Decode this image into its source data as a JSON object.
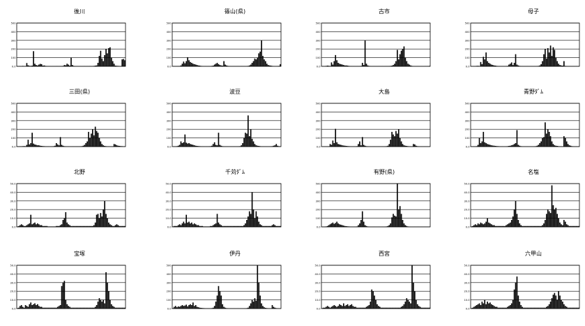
{
  "chart_data": [
    {
      "type": "bar",
      "title": "後川",
      "ylim": [
        0,
        500
      ],
      "yticks": [
        "0.0",
        "100",
        "200",
        "300",
        "400",
        "500"
      ],
      "grid": true,
      "values": [
        2,
        3,
        3,
        2,
        5,
        4,
        3,
        38,
        12,
        6,
        5,
        8,
        175,
        30,
        15,
        10,
        20,
        28,
        25,
        8,
        10,
        5,
        4,
        3,
        3,
        2,
        2,
        2,
        2,
        3,
        3,
        2,
        3,
        2,
        5,
        15,
        12,
        30,
        20,
        8,
        100,
        15,
        5,
        3,
        2,
        2,
        2,
        2,
        2,
        2,
        3,
        2,
        2,
        2,
        3,
        2,
        3,
        5,
        8,
        10,
        40,
        120,
        180,
        90,
        60,
        130,
        200,
        150,
        210,
        220,
        100,
        60,
        30,
        8,
        6,
        5,
        3,
        2,
        80,
        85,
        70
      ]
    },
    {
      "type": "bar",
      "title": "篠山(県)",
      "ylim": [
        0,
        500
      ],
      "yticks": [
        "0.0",
        "100",
        "200",
        "300",
        "400",
        "500"
      ],
      "grid": true,
      "values": [
        1,
        2,
        2,
        3,
        4,
        3,
        10,
        30,
        55,
        35,
        60,
        105,
        70,
        50,
        40,
        30,
        25,
        20,
        15,
        10,
        8,
        5,
        4,
        3,
        3,
        2,
        2,
        2,
        3,
        5,
        8,
        20,
        30,
        40,
        25,
        15,
        10,
        8,
        60,
        20,
        10,
        5,
        3,
        2,
        2,
        2,
        2,
        2,
        2,
        2,
        2,
        3,
        3,
        2,
        2,
        3,
        5,
        10,
        20,
        40,
        60,
        90,
        80,
        100,
        150,
        170,
        300,
        120,
        80,
        60,
        30,
        15,
        10,
        8,
        5,
        3,
        2,
        2,
        4,
        5,
        25
      ]
    },
    {
      "type": "bar",
      "title": "古市",
      "ylim": [
        0,
        500
      ],
      "yticks": [
        "0.0",
        "100",
        "200",
        "300",
        "400",
        "500"
      ],
      "grid": true,
      "values": [
        2,
        3,
        2,
        5,
        8,
        6,
        4,
        45,
        20,
        60,
        130,
        70,
        40,
        30,
        25,
        20,
        15,
        10,
        10,
        8,
        5,
        4,
        3,
        3,
        2,
        2,
        2,
        2,
        3,
        5,
        40,
        15,
        300,
        30,
        10,
        5,
        3,
        2,
        2,
        2,
        2,
        2,
        2,
        2,
        2,
        2,
        2,
        2,
        2,
        3,
        3,
        5,
        8,
        15,
        30,
        60,
        190,
        80,
        140,
        180,
        200,
        230,
        100,
        60,
        30,
        20,
        10,
        5,
        3,
        2,
        2,
        2,
        2,
        2,
        2,
        2,
        2,
        3,
        3,
        4,
        5
      ]
    },
    {
      "type": "bar",
      "title": "母子",
      "ylim": [
        0,
        500
      ],
      "yticks": [
        "0.0",
        "100",
        "200",
        "300",
        "400",
        "500"
      ],
      "grid": true,
      "values": [
        2,
        3,
        2,
        3,
        5,
        6,
        4,
        50,
        25,
        110,
        80,
        160,
        60,
        40,
        30,
        20,
        15,
        10,
        8,
        5,
        4,
        3,
        3,
        2,
        2,
        2,
        3,
        5,
        20,
        30,
        45,
        15,
        40,
        140,
        20,
        10,
        5,
        3,
        2,
        2,
        2,
        2,
        2,
        2,
        2,
        2,
        2,
        2,
        2,
        3,
        5,
        10,
        25,
        60,
        140,
        200,
        90,
        210,
        160,
        240,
        120,
        220,
        190,
        100,
        60,
        30,
        15,
        10,
        8,
        60,
        5,
        3,
        2,
        2,
        2,
        2,
        2,
        2,
        2,
        2,
        2
      ]
    },
    {
      "type": "bar",
      "title": "三田(県)",
      "ylim": [
        0,
        500
      ],
      "yticks": [
        "0.0",
        "100",
        "200",
        "300",
        "400",
        "500"
      ],
      "grid": true,
      "values": [
        2,
        3,
        3,
        4,
        5,
        6,
        5,
        20,
        80,
        25,
        40,
        160,
        35,
        25,
        20,
        15,
        15,
        10,
        8,
        6,
        5,
        4,
        3,
        3,
        2,
        2,
        3,
        5,
        10,
        40,
        25,
        15,
        110,
        20,
        10,
        5,
        3,
        2,
        2,
        2,
        2,
        2,
        2,
        2,
        2,
        2,
        2,
        3,
        5,
        10,
        20,
        40,
        60,
        170,
        100,
        150,
        200,
        130,
        230,
        180,
        160,
        100,
        60,
        30,
        15,
        8,
        5,
        3,
        2,
        2,
        2,
        3,
        30,
        25,
        15,
        10,
        8,
        6,
        5,
        4,
        3
      ]
    },
    {
      "type": "bar",
      "title": "波豆",
      "ylim": [
        0,
        500
      ],
      "yticks": [
        "0.0",
        "100",
        "200",
        "300",
        "400",
        "500"
      ],
      "grid": true,
      "values": [
        1,
        2,
        3,
        5,
        10,
        20,
        60,
        40,
        50,
        140,
        45,
        35,
        40,
        30,
        25,
        20,
        15,
        10,
        8,
        6,
        5,
        4,
        3,
        3,
        2,
        2,
        2,
        3,
        5,
        10,
        30,
        50,
        20,
        15,
        160,
        20,
        10,
        5,
        3,
        2,
        2,
        2,
        2,
        2,
        2,
        2,
        2,
        2,
        2,
        3,
        5,
        15,
        40,
        100,
        160,
        150,
        360,
        120,
        200,
        90,
        60,
        30,
        15,
        10,
        8,
        5,
        4,
        3,
        3,
        2,
        2,
        2,
        2,
        3,
        5,
        10,
        15,
        30,
        10,
        5,
        4
      ]
    },
    {
      "type": "bar",
      "title": "大島",
      "ylim": [
        0,
        500
      ],
      "yticks": [
        "0.0",
        "100",
        "200",
        "300",
        "400",
        "500"
      ],
      "grid": true,
      "values": [
        1,
        2,
        2,
        3,
        3,
        4,
        30,
        20,
        70,
        40,
        205,
        50,
        30,
        25,
        20,
        15,
        12,
        10,
        8,
        6,
        5,
        4,
        3,
        3,
        3,
        4,
        5,
        30,
        60,
        15,
        110,
        20,
        10,
        5,
        3,
        2,
        2,
        2,
        2,
        2,
        2,
        2,
        2,
        2,
        2,
        2,
        2,
        3,
        5,
        10,
        30,
        80,
        170,
        140,
        120,
        180,
        150,
        200,
        100,
        60,
        30,
        15,
        10,
        8,
        5,
        4,
        3,
        2,
        30,
        25,
        10,
        5,
        3,
        2,
        2,
        2,
        2,
        2,
        2,
        2,
        2
      ]
    },
    {
      "type": "bar",
      "title": "青野ﾀﾞﾑ",
      "ylim": [
        0,
        500
      ],
      "yticks": [
        "0.0",
        "100",
        "200",
        "300",
        "400",
        "500"
      ],
      "grid": true,
      "values": [
        2,
        3,
        3,
        4,
        5,
        20,
        100,
        40,
        60,
        170,
        50,
        40,
        30,
        25,
        20,
        15,
        12,
        10,
        8,
        6,
        5,
        4,
        3,
        3,
        2,
        2,
        3,
        5,
        8,
        10,
        15,
        20,
        30,
        40,
        190,
        20,
        10,
        5,
        3,
        2,
        2,
        2,
        2,
        2,
        2,
        2,
        2,
        3,
        5,
        10,
        20,
        40,
        60,
        100,
        110,
        280,
        150,
        200,
        170,
        120,
        60,
        30,
        15,
        10,
        8,
        5,
        4,
        3,
        2,
        120,
        100,
        60,
        30,
        15,
        10,
        5,
        3,
        2,
        2,
        2,
        2
      ]
    },
    {
      "type": "bar",
      "title": "北野",
      "ylim": [
        0,
        50
      ],
      "yticks": [
        "0.0",
        "10.0",
        "20.0",
        "30.0",
        "40.0",
        "50.0"
      ],
      "grid": true,
      "values": [
        0.5,
        1,
        2,
        3,
        2,
        1,
        1,
        2,
        3,
        4,
        14,
        3,
        4,
        5,
        3,
        4,
        3,
        2,
        2,
        1,
        1,
        1,
        1,
        0.5,
        0.5,
        0.5,
        0.5,
        0.5,
        0.5,
        1,
        1,
        1,
        2,
        3,
        8,
        10,
        17,
        5,
        3,
        2,
        1,
        1,
        1,
        1,
        1,
        1,
        1,
        1,
        1,
        1,
        1,
        1,
        1,
        1,
        1,
        1,
        1,
        2,
        5,
        14,
        15,
        10,
        16,
        12,
        20,
        30,
        15,
        10,
        5,
        3,
        2,
        1,
        1,
        2,
        3,
        2,
        1,
        1,
        1,
        1,
        1
      ]
    },
    {
      "type": "bar",
      "title": "千苅ﾀﾞﾑ",
      "ylim": [
        0,
        50
      ],
      "yticks": [
        "0.0",
        "10.0",
        "20.0",
        "30.0",
        "40.0",
        "50.0"
      ],
      "grid": true,
      "values": [
        0.5,
        1,
        1,
        1,
        2,
        3,
        2,
        4,
        6,
        4,
        14,
        5,
        6,
        4,
        5,
        3,
        4,
        3,
        2,
        2,
        1,
        1,
        1,
        0.5,
        0.5,
        0.5,
        0.5,
        0.5,
        1,
        1,
        2,
        3,
        4,
        15,
        5,
        3,
        2,
        1,
        1,
        1,
        1,
        1,
        1,
        1,
        1,
        1,
        1,
        1,
        1,
        1,
        1,
        1,
        1,
        2,
        4,
        8,
        12,
        18,
        15,
        40,
        20,
        10,
        18,
        12,
        6,
        3,
        2,
        1,
        1,
        1,
        1,
        1,
        1,
        1,
        2,
        3,
        2,
        1,
        1,
        1,
        1
      ]
    },
    {
      "type": "bar",
      "title": "有野(県)",
      "ylim": [
        0,
        500
      ],
      "yticks": [
        "0.0",
        "100",
        "200",
        "300",
        "400",
        "500"
      ],
      "grid": true,
      "values": [
        2,
        3,
        4,
        5,
        10,
        20,
        30,
        40,
        50,
        35,
        45,
        60,
        40,
        30,
        25,
        20,
        15,
        10,
        8,
        6,
        5,
        4,
        3,
        3,
        3,
        4,
        5,
        20,
        40,
        80,
        180,
        60,
        20,
        10,
        5,
        3,
        2,
        2,
        2,
        2,
        2,
        2,
        2,
        2,
        2,
        2,
        2,
        3,
        5,
        10,
        20,
        40,
        110,
        150,
        130,
        120,
        510,
        200,
        240,
        150,
        80,
        40,
        20,
        10,
        5,
        3,
        2,
        2,
        2,
        2,
        2,
        2,
        2,
        2,
        2,
        2,
        2,
        2,
        2,
        2,
        2
      ]
    },
    {
      "type": "bar",
      "title": "名塩",
      "ylim": [
        0,
        50
      ],
      "yticks": [
        "0.0",
        "10.0",
        "20.0",
        "30.0",
        "40.0",
        "50.0"
      ],
      "grid": true,
      "values": [
        0.5,
        1,
        2,
        3,
        2,
        4,
        3,
        5,
        4,
        3,
        4,
        6,
        10,
        5,
        4,
        3,
        2,
        2,
        1,
        1,
        1,
        1,
        1,
        1,
        1,
        1,
        2,
        3,
        4,
        5,
        8,
        12,
        20,
        30,
        15,
        8,
        4,
        2,
        1,
        1,
        1,
        1,
        1,
        1,
        1,
        1,
        1,
        1,
        1,
        1,
        1,
        1,
        1,
        2,
        4,
        8,
        15,
        20,
        18,
        16,
        48,
        25,
        20,
        22,
        15,
        10,
        5,
        3,
        2,
        8,
        6,
        3,
        2,
        1,
        1,
        1,
        1,
        1,
        1,
        1,
        1
      ]
    },
    {
      "type": "bar",
      "title": "宝塚",
      "ylim": [
        0,
        50
      ],
      "yticks": [
        "0.0",
        "10.0",
        "20.0",
        "30.0",
        "40.0",
        "50.0"
      ],
      "grid": true,
      "values": [
        0.5,
        1,
        3,
        4,
        2,
        1,
        4,
        3,
        2,
        5,
        7,
        4,
        5,
        6,
        4,
        5,
        3,
        2,
        2,
        1,
        1,
        1,
        1,
        1,
        1,
        1,
        1,
        1,
        1,
        1,
        2,
        3,
        4,
        26,
        30,
        32,
        10,
        5,
        3,
        2,
        1,
        1,
        1,
        1,
        1,
        1,
        1,
        1,
        1,
        1,
        1,
        1,
        1,
        1,
        1,
        1,
        1,
        1,
        2,
        4,
        8,
        12,
        10,
        8,
        10,
        6,
        42,
        30,
        20,
        10,
        5,
        3,
        2,
        1,
        1,
        1,
        1,
        1,
        1,
        1,
        1
      ]
    },
    {
      "type": "bar",
      "title": "伊丹",
      "ylim": [
        0,
        500
      ],
      "yticks": [
        "0.0",
        "100",
        "200",
        "300",
        "400",
        "500"
      ],
      "grid": true,
      "values": [
        5,
        20,
        30,
        15,
        25,
        20,
        30,
        40,
        30,
        35,
        45,
        25,
        40,
        50,
        40,
        70,
        30,
        40,
        20,
        15,
        10,
        8,
        6,
        5,
        4,
        3,
        3,
        3,
        4,
        5,
        10,
        30,
        80,
        150,
        260,
        200,
        150,
        50,
        20,
        10,
        5,
        3,
        2,
        2,
        2,
        2,
        2,
        2,
        2,
        2,
        2,
        2,
        2,
        2,
        3,
        5,
        10,
        30,
        60,
        100,
        80,
        120,
        90,
        510,
        300,
        150,
        60,
        30,
        15,
        8,
        5,
        3,
        2,
        2,
        40,
        20,
        10,
        5,
        3,
        2,
        2
      ]
    },
    {
      "type": "bar",
      "title": "西宮",
      "ylim": [
        0,
        50
      ],
      "yticks": [
        "0.0",
        "10.0",
        "20.0",
        "30.0",
        "40.0",
        "50.0"
      ],
      "grid": true,
      "values": [
        0.5,
        1,
        1,
        2,
        3,
        2,
        1,
        2,
        3,
        4,
        3,
        2,
        3,
        5,
        4,
        3,
        6,
        3,
        4,
        5,
        3,
        4,
        5,
        3,
        2,
        2,
        1,
        1,
        1,
        1,
        1,
        1,
        1,
        2,
        3,
        4,
        8,
        22,
        20,
        15,
        10,
        5,
        3,
        2,
        1,
        1,
        1,
        1,
        1,
        1,
        1,
        1,
        1,
        1,
        1,
        1,
        1,
        1,
        1,
        2,
        3,
        5,
        8,
        12,
        10,
        8,
        6,
        50,
        30,
        20,
        10,
        5,
        3,
        2,
        1,
        1,
        1,
        1,
        1,
        1,
        1
      ]
    },
    {
      "type": "bar",
      "title": "六甲山",
      "ylim": [
        0,
        50
      ],
      "yticks": [
        "0.0",
        "10.0",
        "20.0",
        "30.0",
        "40.0",
        "50.0"
      ],
      "grid": true,
      "values": [
        0.5,
        1,
        2,
        3,
        4,
        5,
        6,
        4,
        8,
        6,
        10,
        5,
        8,
        6,
        7,
        5,
        4,
        3,
        2,
        2,
        1,
        1,
        1,
        1,
        1,
        1,
        1,
        2,
        3,
        4,
        6,
        10,
        22,
        30,
        37,
        15,
        8,
        4,
        2,
        1,
        1,
        1,
        1,
        1,
        1,
        1,
        1,
        1,
        1,
        1,
        1,
        1,
        1,
        1,
        1,
        1,
        2,
        3,
        5,
        8,
        12,
        16,
        18,
        15,
        10,
        20,
        15,
        10,
        8,
        5,
        3,
        2,
        1,
        1,
        1,
        1,
        1,
        1,
        1,
        1,
        1
      ]
    }
  ]
}
